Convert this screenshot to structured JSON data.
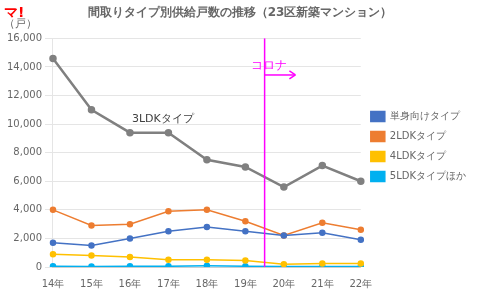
{
  "chart_data": {
    "type": "line",
    "title": "間取りタイプ別供給戸数の推移（23区新築マンション）",
    "y_label": "（戸）",
    "categories": [
      "14年",
      "15年",
      "16年",
      "17年",
      "18年",
      "19年",
      "20年",
      "21年",
      "22年"
    ],
    "series": [
      {
        "name": "3LDKタイプ",
        "color": "#808080",
        "values": [
          14600,
          11000,
          9400,
          9400,
          7500,
          7000,
          5600,
          7100,
          6000
        ]
      },
      {
        "name": "単身向けタイプ",
        "color": "#4472C4",
        "values": [
          1700,
          1500,
          2000,
          2500,
          2800,
          2500,
          2200,
          2400,
          1900
        ]
      },
      {
        "name": "2LDKタイプ",
        "color": "#ED7D31",
        "values": [
          4000,
          2900,
          3000,
          3900,
          4000,
          3200,
          2200,
          3100,
          2600
        ]
      },
      {
        "name": "4LDKタイプ",
        "color": "#FFC000",
        "values": [
          900,
          800,
          700,
          500,
          500,
          450,
          200,
          250,
          250
        ]
      },
      {
        "name": "5LDKタイプほか",
        "color": "#00B0F0",
        "values": [
          50,
          40,
          50,
          50,
          80,
          60,
          30,
          40,
          40
        ]
      }
    ],
    "marker": "circle",
    "ylim": [
      0,
      16000
    ],
    "yticks": [
      0,
      {
        "value": 2000,
        "label": "2,000"
      },
      {
        "value": 4000,
        "label": "4,000"
      },
      {
        "value": 6000,
        "label": "6,000"
      },
      {
        "value": 8000,
        "label": "8,000"
      },
      {
        "value": 10000,
        "label": "10,000"
      },
      {
        "value": 12000,
        "label": "12,000"
      },
      {
        "value": 14000,
        "label": "14,000"
      },
      {
        "value": 16000,
        "label": "16,000"
      }
    ],
    "grid": "y",
    "legend": "right",
    "annotations": [
      {
        "text": "マ!",
        "color": "#FF0000"
      },
      {
        "text": "コロナ",
        "x": "20年",
        "color": "#FF00FF"
      },
      {
        "text": "3LDKタイプ",
        "series": "3LDKタイプ",
        "color": "#404040"
      }
    ]
  }
}
